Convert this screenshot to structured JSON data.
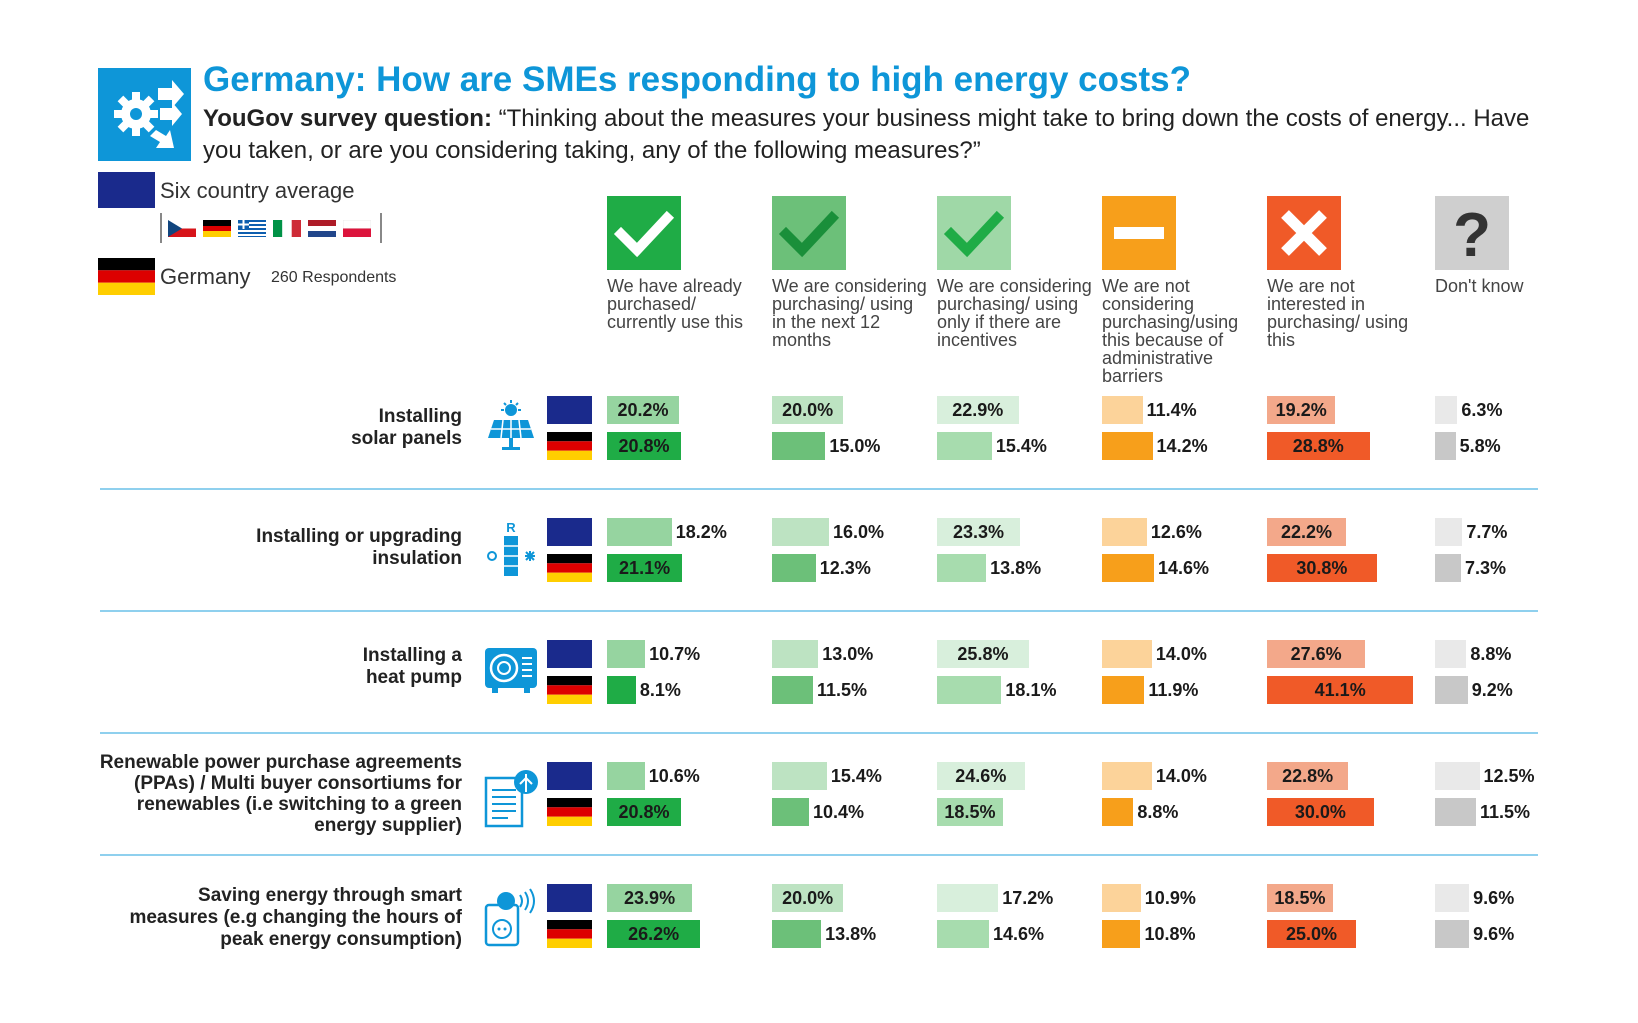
{
  "header": {
    "title": "Germany: How are SMEs responding to high energy costs?",
    "question_prefix": "YouGov survey question:",
    "question_text": "“Thinking about the measures your business might take to bring down the costs of energy... Have you taken, or are you considering taking, any of the following measures?”"
  },
  "legend": {
    "average_label": "Six country average",
    "germany_label": "Germany",
    "respondents": "260 Respondents"
  },
  "colors": {
    "title": "#0e96d8",
    "eu_blue": "#1a2a8c",
    "divider": "#8fd0ee",
    "col_purchased": "#1fac46",
    "col_next12": "#6cc079",
    "col_incentives": "#a7dcae",
    "col_admin": "#f79f1b",
    "col_notinterested": "#f05a28",
    "col_dontknow": "#c8c8c8"
  },
  "chart_data": {
    "type": "bar",
    "columns": [
      {
        "label": "We have already purchased/ currently use this",
        "icon": "check-icon"
      },
      {
        "label": "We are considering purchasing/ using in the next 12 months",
        "icon": "check-icon"
      },
      {
        "label": "We are considering purchasing/ using only if there are incentives",
        "icon": "check-icon"
      },
      {
        "label": "We are not considering purchasing/using this because of administrative barriers",
        "icon": "minus-icon"
      },
      {
        "label": "We are not interested in purchasing/ using this",
        "icon": "cross-icon"
      },
      {
        "label": "Don't know",
        "icon": "question-icon"
      }
    ],
    "series": [
      {
        "name": "Six country average"
      },
      {
        "name": "Germany"
      }
    ],
    "rows": [
      {
        "label": "Installing solar panels",
        "icon": "solar-panel-icon",
        "average": [
          20.2,
          20.0,
          22.9,
          11.4,
          19.2,
          6.3
        ],
        "germany": [
          20.8,
          15.0,
          15.4,
          14.2,
          28.8,
          5.8
        ],
        "average_labels": [
          "20.2%",
          "20.0%",
          "22.9%",
          "11.4%",
          "19.2%",
          "6.3%"
        ],
        "germany_labels": [
          "20.8%",
          "15.0%",
          "15.4%",
          "14.2%",
          "28.8%",
          "5.8%"
        ]
      },
      {
        "label": "Installing or upgrading insulation",
        "icon": "insulation-icon",
        "average": [
          18.2,
          16.0,
          23.3,
          12.6,
          22.2,
          7.7
        ],
        "germany": [
          21.1,
          12.3,
          13.8,
          14.6,
          30.8,
          7.3
        ],
        "average_labels": [
          "18.2%",
          "16.0%",
          "23.3%",
          "12.6%",
          "22.2%",
          "7.7%"
        ],
        "germany_labels": [
          "21.1%",
          "12.3%",
          "13.8%",
          "14.6%",
          "30.8%",
          "7.3%"
        ]
      },
      {
        "label": "Installing a heat pump",
        "icon": "heat-pump-icon",
        "average": [
          10.7,
          13.0,
          25.8,
          14.0,
          27.6,
          8.8
        ],
        "germany": [
          8.1,
          11.5,
          18.1,
          11.9,
          41.1,
          9.2
        ],
        "average_labels": [
          "10.7%",
          "13.0%",
          "25.8%",
          "14.0%",
          "27.6%",
          "8.8%"
        ],
        "germany_labels": [
          "8.1%",
          "11.5%",
          "18.1%",
          "11.9%",
          "41.1%",
          "9.2%"
        ]
      },
      {
        "label": "Renewable power purchase agreements (PPAs) / Multi buyer consortiums for renewables (i.e switching to a green energy supplier)",
        "icon": "document-icon",
        "average": [
          10.6,
          15.4,
          24.6,
          14.0,
          22.8,
          12.5
        ],
        "germany": [
          20.8,
          10.4,
          18.5,
          8.8,
          30.0,
          11.5
        ],
        "average_labels": [
          "10.6%",
          "15.4%",
          "24.6%",
          "14.0%",
          "22.8%",
          "12.5%"
        ],
        "germany_labels": [
          "20.8%",
          "10.4%",
          "18.5%",
          "8.8%",
          "30.0%",
          "11.5%"
        ]
      },
      {
        "label": "Saving energy through smart measures (e.g changing the hours of peak energy consumption)",
        "icon": "smart-plug-icon",
        "average": [
          23.9,
          20.0,
          17.2,
          10.9,
          18.5,
          9.6
        ],
        "germany": [
          26.2,
          13.8,
          14.6,
          10.8,
          25.0,
          9.6
        ],
        "average_labels": [
          "23.9%",
          "20.0%",
          "17.2%",
          "10.9%",
          "18.5%",
          "9.6%"
        ],
        "germany_labels": [
          "26.2%",
          "13.8%",
          "14.6%",
          "10.8%",
          "25.0%",
          "9.6%"
        ]
      }
    ]
  }
}
